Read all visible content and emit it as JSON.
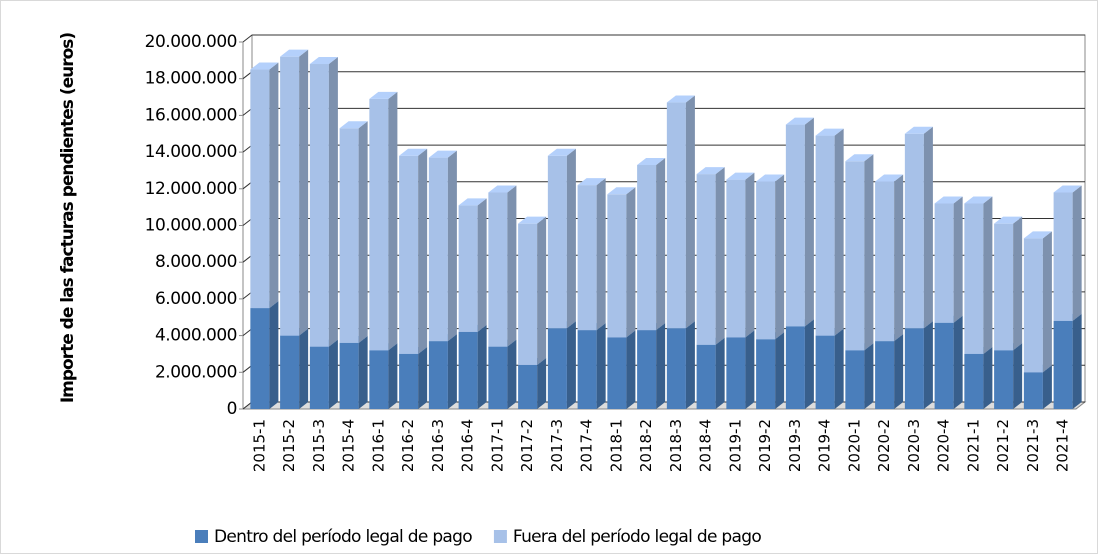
{
  "chart_data": {
    "type": "bar",
    "stacked": true,
    "three_d": true,
    "y_label": "Importe de las facturas pendientes (euros)",
    "categories": [
      "2015-1",
      "2015-2",
      "2015-3",
      "2015-4",
      "2016-1",
      "2016-2",
      "2016-3",
      "2016-4",
      "2017-1",
      "2017-2",
      "2017-3",
      "2017-4",
      "2018-1",
      "2018-2",
      "2018-3",
      "2018-4",
      "2019-1",
      "2019-2",
      "2019-3",
      "2019-4",
      "2020-1",
      "2020-2",
      "2020-3",
      "2020-4",
      "2021-1",
      "2021-2",
      "2021-3",
      "2021-4"
    ],
    "series": [
      {
        "name": "Dentro del período legal de pago",
        "color": "#4a7ebb",
        "values": [
          5500000,
          4000000,
          3400000,
          3600000,
          3200000,
          3000000,
          3700000,
          4200000,
          3400000,
          2400000,
          4400000,
          4300000,
          3900000,
          4300000,
          4400000,
          3500000,
          3900000,
          3800000,
          4500000,
          4000000,
          3200000,
          3700000,
          4400000,
          4700000,
          3000000,
          3200000,
          2000000,
          4800000
        ]
      },
      {
        "name": "Fuera del período legal de pago",
        "color": "#a7c1e8",
        "values": [
          13000000,
          15200000,
          15400000,
          11700000,
          13700000,
          10800000,
          10000000,
          6900000,
          8400000,
          7700000,
          9400000,
          7900000,
          7800000,
          9000000,
          12300000,
          9300000,
          8600000,
          8600000,
          11000000,
          10900000,
          10300000,
          8700000,
          10600000,
          6500000,
          8200000,
          6900000,
          7300000,
          7000000
        ]
      }
    ],
    "ylim": [
      0,
      20000000
    ],
    "yticks": [
      0,
      {
        "value": 2000000,
        "label": "2.000.000"
      },
      {
        "value": 4000000,
        "label": "4.000.000"
      },
      {
        "value": 6000000,
        "label": "6.000.000"
      },
      {
        "value": 8000000,
        "label": "8.000.000"
      },
      {
        "value": 10000000,
        "label": "10.000.000"
      },
      {
        "value": 12000000,
        "label": "12.000.000"
      },
      {
        "value": 14000000,
        "label": "14.000.000"
      },
      {
        "value": 16000000,
        "label": "16.000.000"
      },
      {
        "value": 18000000,
        "label": "18.000.000"
      },
      {
        "value": 20000000,
        "label": "20.000.000"
      }
    ],
    "grid": true,
    "legend": "bottom"
  }
}
